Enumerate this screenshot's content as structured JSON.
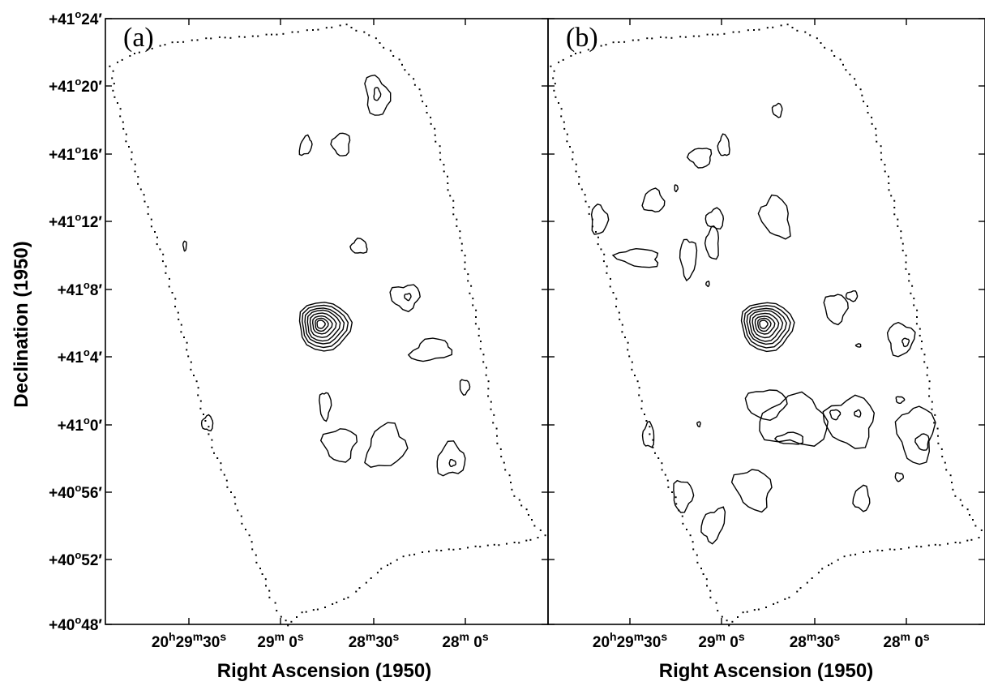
{
  "chart_data": [
    {
      "type": "contour",
      "panel_label": "(a)",
      "xlabel": "Right Ascension (1950)",
      "ylabel": "Declination (1950)",
      "x_ticks": [
        {
          "h": "20",
          "hs": "h",
          "m": "29",
          "ms": "m",
          "s": "30",
          "ss": "s"
        },
        {
          "h": "",
          "hs": "",
          "m": "29",
          "ms": "m",
          "s": " 0",
          "ss": "s"
        },
        {
          "h": "",
          "hs": "",
          "m": "28",
          "ms": "m",
          "s": "30",
          "ss": "s"
        },
        {
          "h": "",
          "hs": "",
          "m": "28",
          "ms": "m",
          "s": " 0",
          "ss": "s"
        }
      ],
      "y_ticks": [
        {
          "deg": "+41",
          "min": "24"
        },
        {
          "deg": "+41",
          "min": "20"
        },
        {
          "deg": "+41",
          "min": "16"
        },
        {
          "deg": "+41",
          "min": "12"
        },
        {
          "deg": "+41",
          "min": "8"
        },
        {
          "deg": "+41",
          "min": "4"
        },
        {
          "deg": "+41",
          "min": "0"
        },
        {
          "deg": "+40",
          "min": "56"
        },
        {
          "deg": "+40",
          "min": "52"
        },
        {
          "deg": "+40",
          "min": "48"
        }
      ],
      "peak_source": {
        "ra": "20h28m44s",
        "dec": "+41°06'",
        "contour_levels": 8
      }
    },
    {
      "type": "contour",
      "panel_label": "(b)",
      "xlabel": "Right Ascension (1950)",
      "x_ticks": [
        {
          "h": "20",
          "hs": "h",
          "m": "29",
          "ms": "m",
          "s": "30",
          "ss": "s"
        },
        {
          "h": "",
          "hs": "",
          "m": "29",
          "ms": "m",
          "s": " 0",
          "ss": "s"
        },
        {
          "h": "",
          "hs": "",
          "m": "28",
          "ms": "m",
          "s": "30",
          "ss": "s"
        },
        {
          "h": "",
          "hs": "",
          "m": "28",
          "ms": "m",
          "s": " 0",
          "ss": "s"
        }
      ],
      "peak_source": {
        "ra": "20h28m44s",
        "dec": "+41°06'",
        "contour_levels": 8
      }
    }
  ]
}
